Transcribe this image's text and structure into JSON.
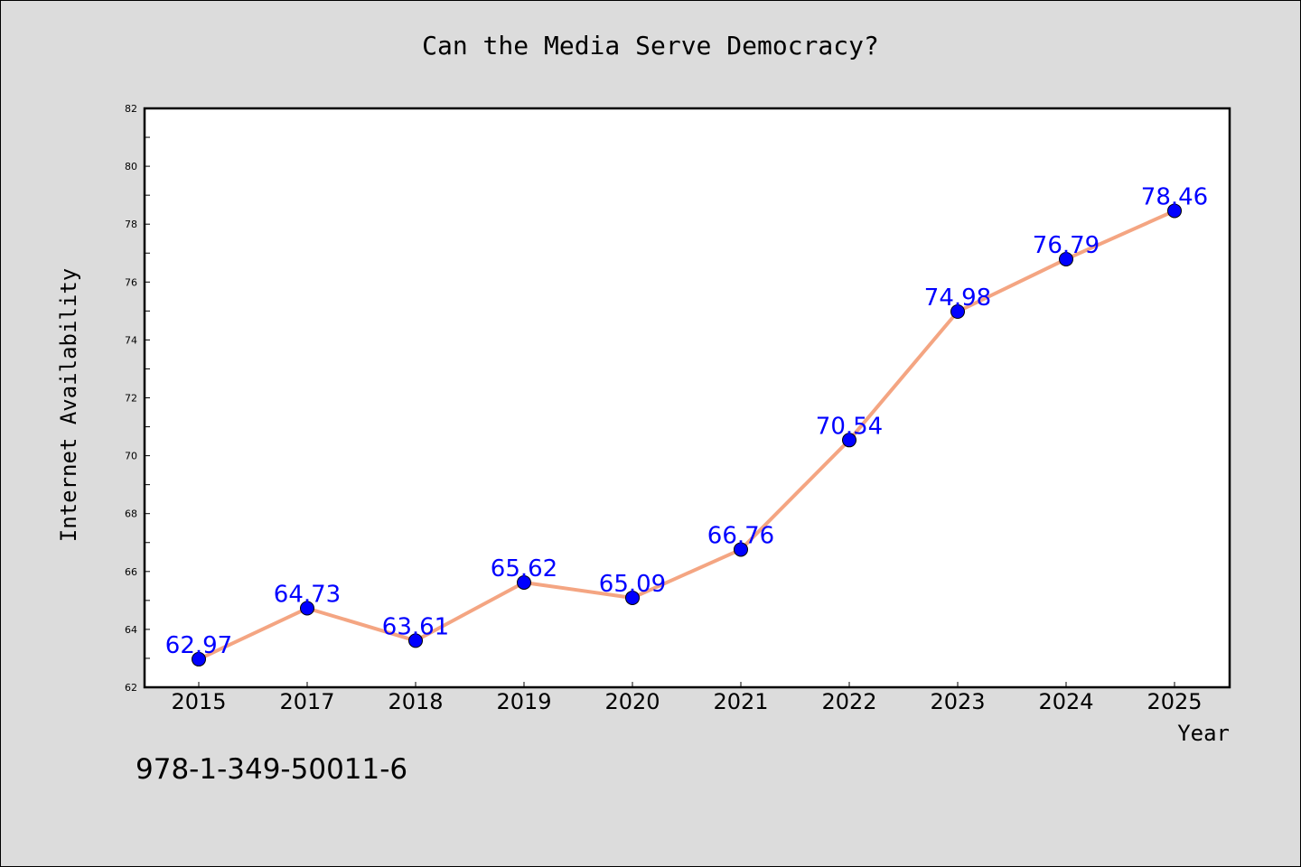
{
  "colors": {
    "background": "#dcdcdc",
    "plot_background": "#ffffff",
    "line": "#f4a582",
    "marker": "#0000ff",
    "data_label": "#0000ff"
  },
  "footnote": "978-1-349-50011-6",
  "chart_data": {
    "type": "line",
    "title": "Can the Media Serve Democracy?",
    "xlabel": "Year",
    "ylabel": "Internet Availability",
    "categories": [
      "2015",
      "2017",
      "2018",
      "2019",
      "2020",
      "2021",
      "2022",
      "2023",
      "2024",
      "2025"
    ],
    "series": [
      {
        "values": [
          62.97,
          64.73,
          63.61,
          65.62,
          65.09,
          66.76,
          70.54,
          74.98,
          76.79,
          78.46
        ],
        "labels": [
          "62.97",
          "64.73",
          "63.61",
          "65.62",
          "65.09",
          "66.76",
          "70.54",
          "74.98",
          "76.79",
          "78.46"
        ]
      }
    ],
    "ylim": [
      62,
      82
    ],
    "yticks": [
      "62",
      "64",
      "66",
      "68",
      "70",
      "72",
      "74",
      "76",
      "78",
      "80",
      "82"
    ],
    "grid": false,
    "legend": "none"
  }
}
